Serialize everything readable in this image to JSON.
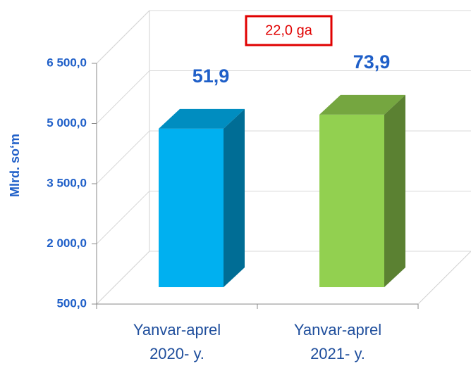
{
  "chart_data": {
    "type": "bar3d",
    "y_label": "Mlrd. so‘m",
    "categories": [
      "Yanvar-aprel\n2020- y.",
      "Yanvar-aprel\n2021- y."
    ],
    "series": [
      {
        "colors": [
          "#00b0f0",
          "#92d050"
        ],
        "values": [
          4450,
          4800
        ]
      }
    ],
    "annotations": [
      "51,9",
      "73,9",
      "22,0 ga"
    ],
    "ylim": [
      500,
      6500
    ],
    "yticks": [
      {
        "value": 500,
        "label": "500,0"
      },
      {
        "value": 2000,
        "label": "2 000,0"
      },
      {
        "value": 3500,
        "label": "3 500,0"
      },
      {
        "value": 5000,
        "label": "5 000,0"
      },
      {
        "value": 6500,
        "label": "6 500,0"
      }
    ],
    "grid": true
  }
}
